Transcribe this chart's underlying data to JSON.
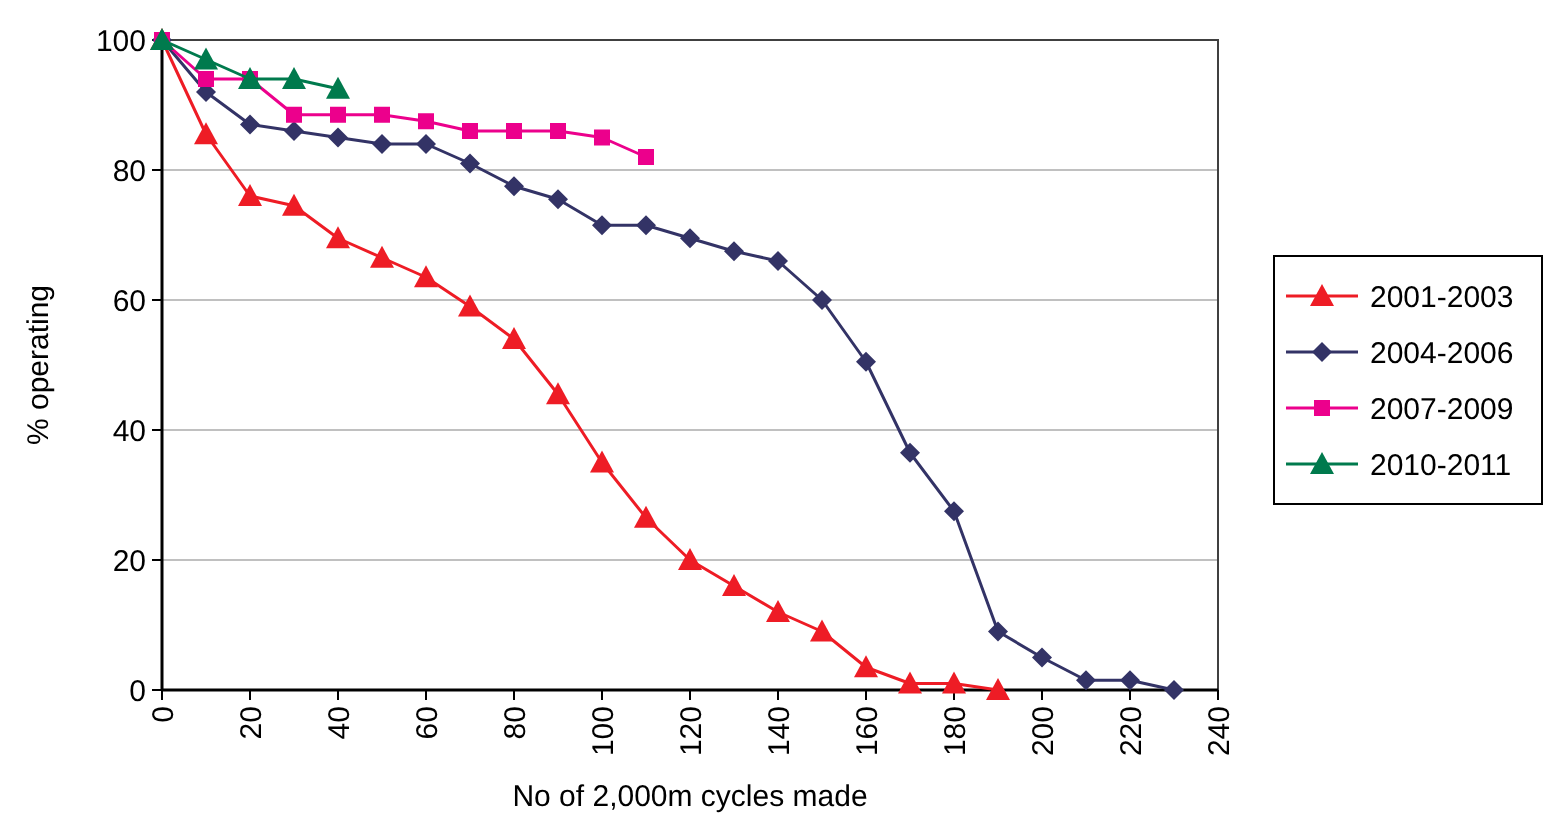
{
  "chart_data": {
    "type": "line",
    "xlabel": "No of 2,000m cycles made",
    "ylabel": "% operating",
    "xlim": [
      0,
      240
    ],
    "xticks": [
      0,
      20,
      40,
      60,
      80,
      100,
      120,
      140,
      160,
      180,
      200,
      220,
      240
    ],
    "ylim": [
      0,
      100
    ],
    "yticks": [
      0,
      20,
      40,
      60,
      80,
      100
    ],
    "grid": "y",
    "legend": "right",
    "series": [
      {
        "name": "2001-2003",
        "color": "#ee1c25",
        "marker": "triangle",
        "x": [
          0,
          10,
          20,
          30,
          40,
          50,
          60,
          70,
          80,
          90,
          100,
          110,
          120,
          130,
          140,
          150,
          160,
          170,
          180,
          190
        ],
        "values": [
          100,
          85.5,
          76,
          74.5,
          69.5,
          66.5,
          63.5,
          59,
          54,
          45.5,
          35,
          26.5,
          20,
          16,
          12,
          9,
          3.5,
          1,
          1,
          0
        ]
      },
      {
        "name": "2004-2006",
        "color": "#333366",
        "marker": "diamond",
        "x": [
          0,
          10,
          20,
          30,
          40,
          50,
          60,
          70,
          80,
          90,
          100,
          110,
          120,
          130,
          140,
          150,
          160,
          170,
          180,
          190,
          200,
          210,
          220,
          230
        ],
        "values": [
          100,
          92,
          87,
          86,
          85,
          84,
          84,
          81,
          77.5,
          75.5,
          71.5,
          71.5,
          69.5,
          67.5,
          66,
          60,
          50.5,
          36.5,
          27.5,
          9,
          5,
          1.5,
          1.5,
          0
        ]
      },
      {
        "name": "2007-2009",
        "color": "#ec008c",
        "marker": "square",
        "x": [
          0,
          10,
          20,
          30,
          40,
          50,
          60,
          70,
          80,
          90,
          100,
          110
        ],
        "values": [
          100,
          94,
          94,
          88.5,
          88.5,
          88.5,
          87.5,
          86,
          86,
          86,
          85,
          82
        ]
      },
      {
        "name": "2010-2011",
        "color": "#007a4d",
        "marker": "triangle",
        "x": [
          0,
          10,
          20,
          30,
          40
        ],
        "values": [
          100,
          97,
          94,
          94,
          92.5
        ]
      }
    ]
  }
}
